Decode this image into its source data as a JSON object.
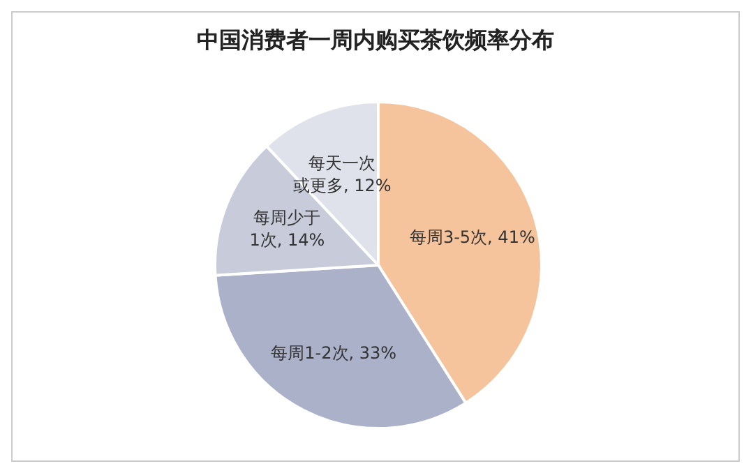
{
  "chart_data": {
    "type": "pie",
    "title": "中国消费者一周内购买茶饮频率分布",
    "categories": [
      "每周3-5次",
      "每周1-2次",
      "每周少于1次",
      "每天一次或更多"
    ],
    "values": [
      41,
      33,
      14,
      12
    ],
    "colors": [
      "#f5c49c",
      "#abb1c8",
      "#c8cbd9",
      "#dfe2ea"
    ],
    "value_labels": [
      "41%",
      "33%",
      "14%",
      "12%"
    ],
    "legend": false
  }
}
